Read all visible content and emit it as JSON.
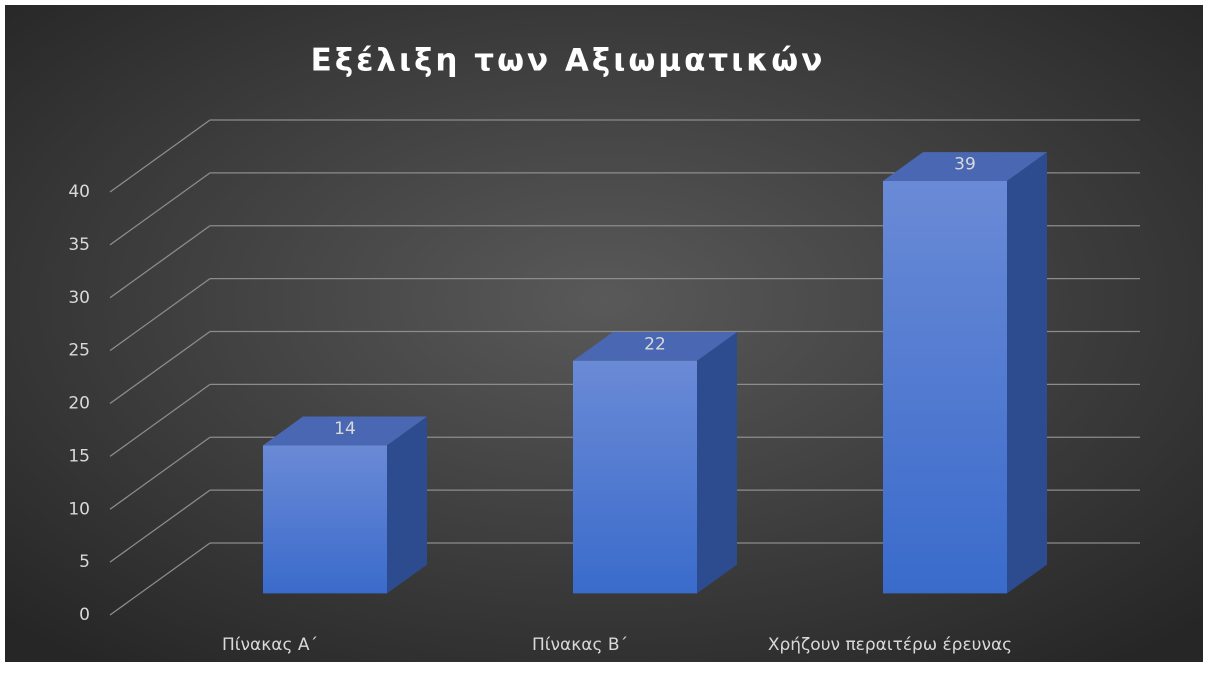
{
  "chart_data": {
    "type": "bar3d",
    "title": "Εξέλιξη των Αξιωματικών",
    "categories": [
      "Πίνακας Α΄",
      "Πίνακας Β΄",
      "Χρήζουν περαιτέρω έρευνας"
    ],
    "values": [
      14,
      22,
      39
    ],
    "color": "#4a74cf",
    "ylim": [
      0,
      40
    ],
    "yticks": [
      0,
      5,
      10,
      15,
      20,
      25,
      30,
      35,
      40
    ],
    "grid": true
  }
}
